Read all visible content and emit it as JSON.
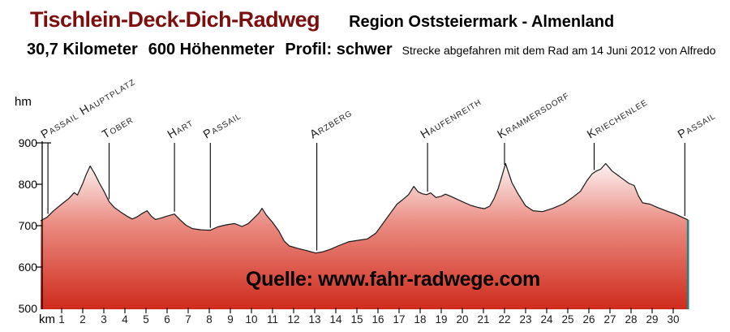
{
  "header": {
    "title": "Tischlein-Deck-Dich-Radweg",
    "region": "Region Oststeiermark - Almenland",
    "stats": {
      "distance": "30,7 Kilometer",
      "elevation_gain": "600 Höhenmeter",
      "difficulty": "Profil: schwer"
    },
    "note": "Strecke abgefahren mit dem Rad am 14 Juni 2012 von Alfredo"
  },
  "watermark": "Quelle: www.fahr-radwege.com",
  "colors": {
    "title_red": "#7d0e0e",
    "fill_top": "#ffffff",
    "fill_mid": "#ea8a80",
    "fill_bottom": "#cf2b1c",
    "outline": "#1a1a1a",
    "end_line_teal": "#2e8080",
    "axis": "#000000"
  },
  "chart_data": {
    "type": "area",
    "xlabel": "km",
    "ylabel": "hm",
    "xlim": [
      0,
      30.7
    ],
    "ylim": [
      500,
      900
    ],
    "x_ticks": [
      1,
      2,
      3,
      4,
      5,
      6,
      7,
      8,
      9,
      10,
      11,
      12,
      13,
      14,
      15,
      16,
      17,
      18,
      19,
      20,
      21,
      22,
      23,
      24,
      25,
      26,
      27,
      28,
      29,
      30
    ],
    "y_ticks": [
      900,
      800,
      700,
      600,
      500
    ],
    "profile_km_hm": [
      [
        0,
        712
      ],
      [
        0.3,
        720
      ],
      [
        0.6,
        735
      ],
      [
        1.0,
        752
      ],
      [
        1.35,
        766
      ],
      [
        1.6,
        780
      ],
      [
        1.75,
        774
      ],
      [
        2.0,
        802
      ],
      [
        2.15,
        822
      ],
      [
        2.35,
        844
      ],
      [
        2.55,
        827
      ],
      [
        2.8,
        802
      ],
      [
        3.0,
        784
      ],
      [
        3.25,
        758
      ],
      [
        3.5,
        744
      ],
      [
        3.8,
        733
      ],
      [
        4.1,
        723
      ],
      [
        4.35,
        716
      ],
      [
        4.6,
        722
      ],
      [
        4.8,
        729
      ],
      [
        5.05,
        736
      ],
      [
        5.25,
        723
      ],
      [
        5.45,
        715
      ],
      [
        5.75,
        719
      ],
      [
        6.05,
        724
      ],
      [
        6.35,
        728
      ],
      [
        6.6,
        715
      ],
      [
        6.9,
        701
      ],
      [
        7.2,
        693
      ],
      [
        7.6,
        690
      ],
      [
        8.05,
        689
      ],
      [
        8.4,
        697
      ],
      [
        8.8,
        702
      ],
      [
        9.2,
        705
      ],
      [
        9.55,
        698
      ],
      [
        9.85,
        705
      ],
      [
        10.15,
        720
      ],
      [
        10.35,
        730
      ],
      [
        10.5,
        742
      ],
      [
        10.7,
        726
      ],
      [
        11.0,
        708
      ],
      [
        11.3,
        687
      ],
      [
        11.55,
        663
      ],
      [
        11.8,
        651
      ],
      [
        12.2,
        645
      ],
      [
        12.6,
        640
      ],
      [
        13.05,
        634
      ],
      [
        13.4,
        637
      ],
      [
        13.75,
        643
      ],
      [
        14.1,
        651
      ],
      [
        14.6,
        661
      ],
      [
        15.1,
        665
      ],
      [
        15.5,
        668
      ],
      [
        15.9,
        682
      ],
      [
        16.2,
        703
      ],
      [
        16.6,
        731
      ],
      [
        16.9,
        752
      ],
      [
        17.15,
        762
      ],
      [
        17.45,
        775
      ],
      [
        17.7,
        795
      ],
      [
        17.9,
        782
      ],
      [
        18.1,
        777
      ],
      [
        18.3,
        775
      ],
      [
        18.5,
        779
      ],
      [
        18.75,
        768
      ],
      [
        19.0,
        771
      ],
      [
        19.2,
        776
      ],
      [
        19.45,
        771
      ],
      [
        19.7,
        765
      ],
      [
        20.0,
        758
      ],
      [
        20.4,
        749
      ],
      [
        20.75,
        744
      ],
      [
        21.05,
        741
      ],
      [
        21.3,
        747
      ],
      [
        21.5,
        765
      ],
      [
        21.7,
        790
      ],
      [
        21.85,
        815
      ],
      [
        22.05,
        850
      ],
      [
        22.35,
        804
      ],
      [
        22.65,
        776
      ],
      [
        23.0,
        748
      ],
      [
        23.35,
        736
      ],
      [
        23.8,
        734
      ],
      [
        24.3,
        742
      ],
      [
        24.8,
        753
      ],
      [
        25.2,
        767
      ],
      [
        25.6,
        783
      ],
      [
        25.9,
        808
      ],
      [
        26.15,
        825
      ],
      [
        26.35,
        832
      ],
      [
        26.55,
        836
      ],
      [
        26.8,
        850
      ],
      [
        27.1,
        832
      ],
      [
        27.5,
        817
      ],
      [
        27.9,
        802
      ],
      [
        28.15,
        797
      ],
      [
        28.35,
        772
      ],
      [
        28.55,
        755
      ],
      [
        28.9,
        752
      ],
      [
        29.3,
        743
      ],
      [
        29.7,
        735
      ],
      [
        30.1,
        728
      ],
      [
        30.4,
        721
      ],
      [
        30.7,
        714
      ]
    ],
    "markers": [
      {
        "label": "Passail Hauptplatz",
        "km": 0.35
      },
      {
        "label": "Tober",
        "km": 3.25
      },
      {
        "label": "Hart",
        "km": 6.35
      },
      {
        "label": "Passail",
        "km": 8.05
      },
      {
        "label": "Arzberg",
        "km": 13.1
      },
      {
        "label": "Haufenreith",
        "km": 18.35
      },
      {
        "label": "Krammersdorf",
        "km": 22.0
      },
      {
        "label": "Kriechenlee",
        "km": 26.25
      },
      {
        "label": "Passail",
        "km": 30.55
      }
    ]
  }
}
